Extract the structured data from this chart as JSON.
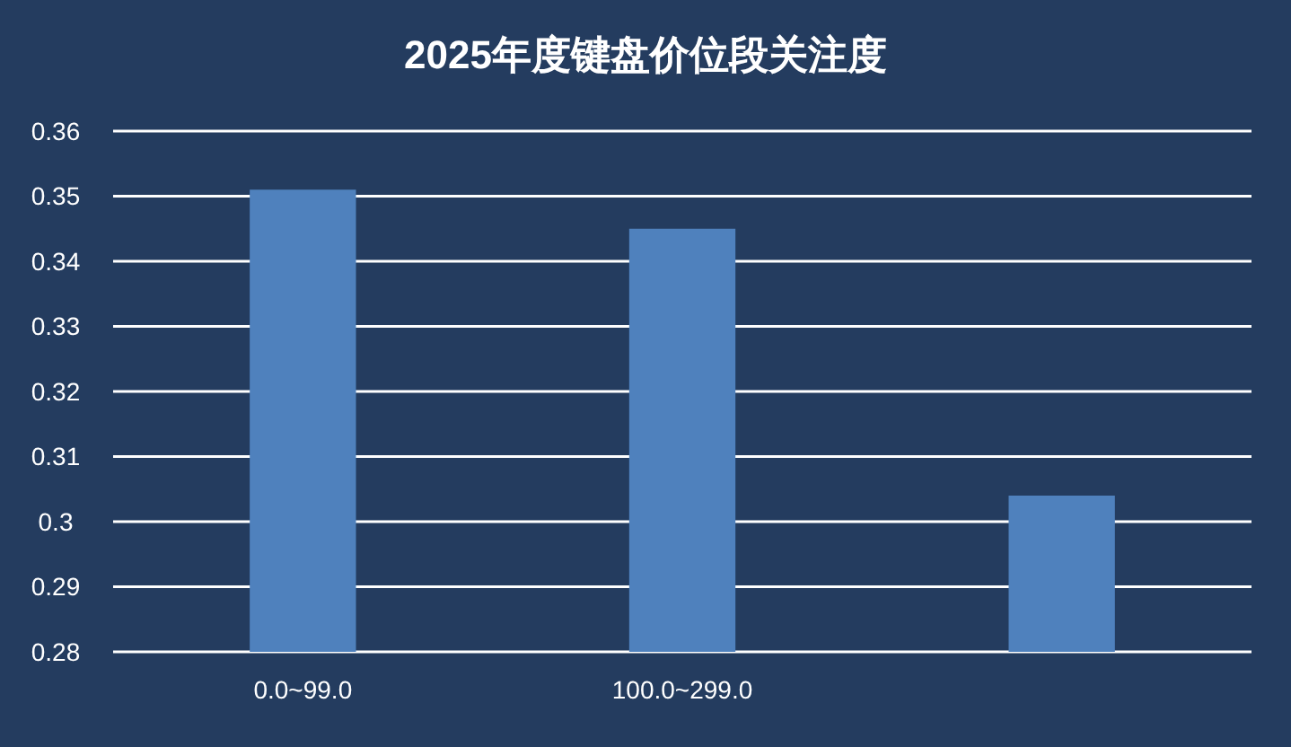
{
  "chart_data": {
    "type": "bar",
    "title": "2025年度键盘价位段关注度",
    "categories": [
      "0.0~99.0",
      "100.0~299.0",
      null
    ],
    "values": [
      0.351,
      0.345,
      0.304
    ],
    "color": "#4f81bd",
    "ylim": [
      0.28,
      0.36
    ],
    "yticks": [
      0.28,
      0.29,
      0.3,
      0.31,
      0.32,
      0.33,
      0.34,
      0.35,
      0.36
    ],
    "grid": "y"
  }
}
